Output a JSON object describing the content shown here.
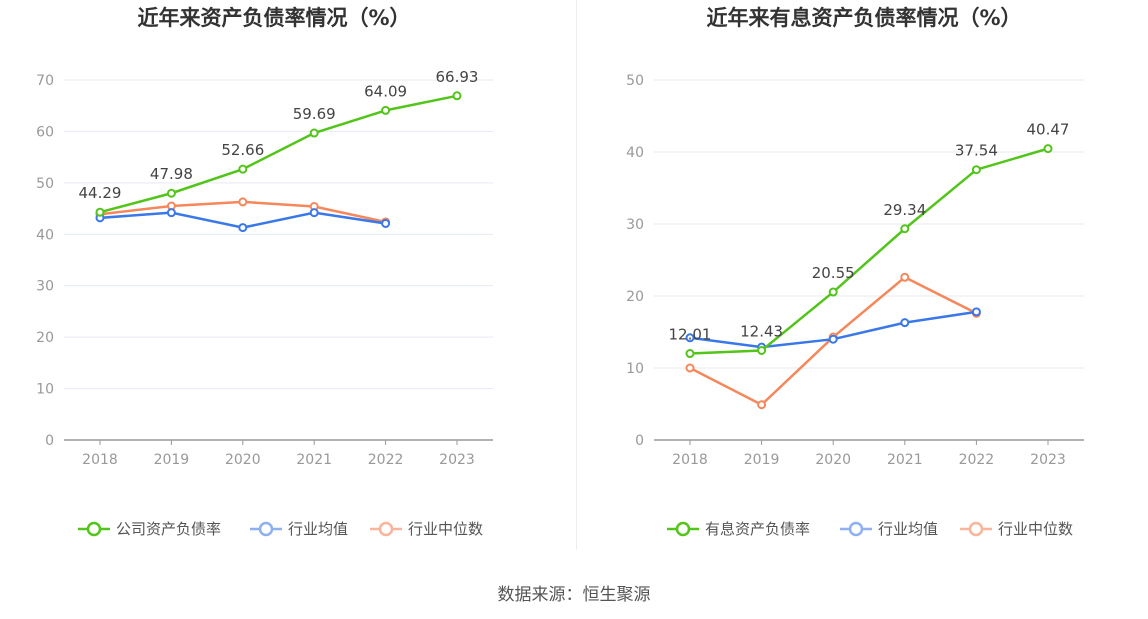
{
  "source": "数据来源：恒生聚源",
  "colors": {
    "company": "#52c41a",
    "avg": "#3a77e8",
    "median": "#f5875b",
    "grid": "#e6e9f2",
    "axis": "#999"
  },
  "chart_data": [
    {
      "type": "line",
      "title": "近年来资产负债率情况（%）",
      "categories": [
        "2018",
        "2019",
        "2020",
        "2021",
        "2022",
        "2023"
      ],
      "ylim": [
        0,
        70
      ],
      "yticks": [
        0,
        10,
        20,
        30,
        40,
        50,
        60,
        70
      ],
      "grid": true,
      "legend_placement": "bottom",
      "series": [
        {
          "name": "公司资产负债率",
          "values": [
            44.29,
            47.98,
            52.66,
            59.69,
            64.09,
            66.93
          ],
          "labels": [
            "44.29",
            "47.98",
            "52.66",
            "59.69",
            "64.09",
            "66.93"
          ]
        },
        {
          "name": "行业均值",
          "values": [
            43.2,
            44.2,
            41.3,
            44.2,
            42.1,
            null
          ]
        },
        {
          "name": "行业中位数",
          "values": [
            43.9,
            45.5,
            46.3,
            45.4,
            42.4,
            null
          ]
        }
      ]
    },
    {
      "type": "line",
      "title": "近年来有息资产负债率情况（%）",
      "categories": [
        "2018",
        "2019",
        "2020",
        "2021",
        "2022",
        "2023"
      ],
      "ylim": [
        0,
        50
      ],
      "yticks": [
        0,
        10,
        20,
        30,
        40,
        50
      ],
      "grid": true,
      "legend_placement": "bottom",
      "series": [
        {
          "name": "有息资产负债率",
          "values": [
            12.01,
            12.43,
            20.55,
            29.34,
            37.54,
            40.47
          ],
          "labels": [
            "12.01",
            "12.43",
            "20.55",
            "29.34",
            "37.54",
            "40.47"
          ]
        },
        {
          "name": "行业均值",
          "values": [
            14.2,
            12.9,
            14.0,
            16.3,
            17.8,
            null
          ]
        },
        {
          "name": "行业中位数",
          "values": [
            10.0,
            4.9,
            14.3,
            22.6,
            17.6,
            null
          ]
        }
      ]
    }
  ]
}
